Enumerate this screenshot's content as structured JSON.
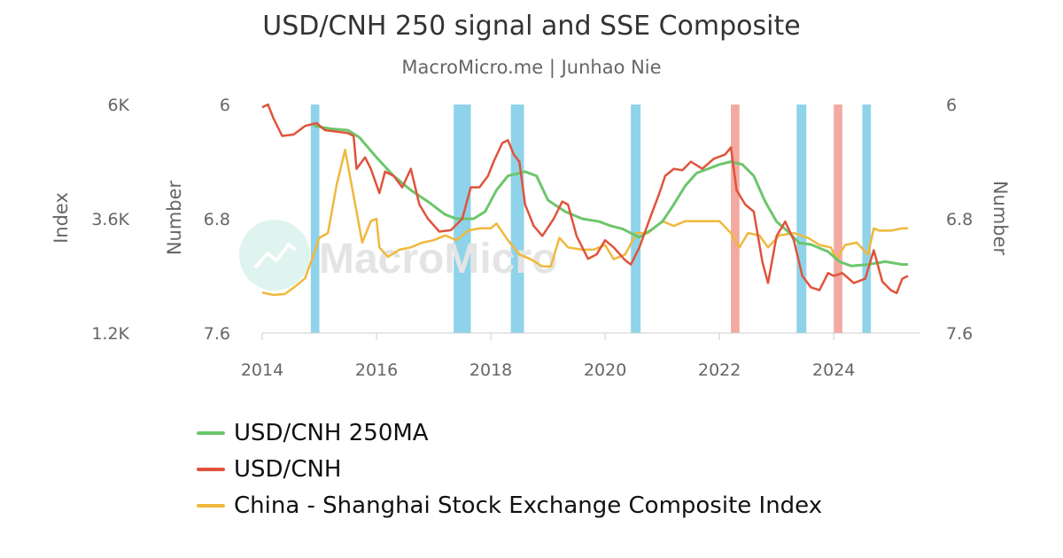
{
  "title": "USD/CNH 250 signal and SSE Composite",
  "subtitle": "MacroMicro.me | Junhao Nie",
  "watermark": "MacroMicro",
  "colors": {
    "ma": "#6cc66c",
    "usdcnh": "#e0533b",
    "sse": "#f0b83c",
    "band_blue": "#8fd3ea",
    "band_red": "#f2aaa0",
    "axis_text": "#666666"
  },
  "chart_data": {
    "type": "line",
    "x_ticks": [
      "2014",
      "2016",
      "2018",
      "2020",
      "2022",
      "2024"
    ],
    "left_axis": {
      "label": "Index",
      "ticks": [
        "6K",
        "3.6K",
        "1.2K"
      ],
      "range": [
        1.2,
        6.0
      ],
      "unit": "K"
    },
    "middle_axis": {
      "label": "Number",
      "ticks": [
        "6",
        "6.8",
        "7.6"
      ],
      "range": [
        6.0,
        7.6
      ],
      "reversed": true
    },
    "right_axis": {
      "label": "Number",
      "ticks": [
        "6",
        "6.8",
        "7.6"
      ],
      "range": [
        6.0,
        7.6
      ],
      "reversed": true
    },
    "bands": [
      {
        "start": 2014.85,
        "end": 2015.0,
        "color": "blue"
      },
      {
        "start": 2017.35,
        "end": 2017.65,
        "color": "blue"
      },
      {
        "start": 2018.35,
        "end": 2018.58,
        "color": "blue"
      },
      {
        "start": 2020.45,
        "end": 2020.62,
        "color": "blue"
      },
      {
        "start": 2022.2,
        "end": 2022.35,
        "color": "red"
      },
      {
        "start": 2023.35,
        "end": 2023.52,
        "color": "blue"
      },
      {
        "start": 2024.0,
        "end": 2024.15,
        "color": "red"
      },
      {
        "start": 2024.5,
        "end": 2024.65,
        "color": "blue"
      }
    ],
    "series": [
      {
        "name": "USD/CNH 250MA",
        "axis": "middle",
        "points": [
          [
            2014.9,
            6.15
          ],
          [
            2015.2,
            6.17
          ],
          [
            2015.5,
            6.18
          ],
          [
            2015.7,
            6.23
          ],
          [
            2016.0,
            6.37
          ],
          [
            2016.3,
            6.5
          ],
          [
            2016.6,
            6.6
          ],
          [
            2016.9,
            6.68
          ],
          [
            2017.2,
            6.77
          ],
          [
            2017.4,
            6.8
          ],
          [
            2017.7,
            6.8
          ],
          [
            2017.9,
            6.75
          ],
          [
            2018.1,
            6.6
          ],
          [
            2018.3,
            6.5
          ],
          [
            2018.6,
            6.47
          ],
          [
            2018.8,
            6.5
          ],
          [
            2019.0,
            6.67
          ],
          [
            2019.3,
            6.75
          ],
          [
            2019.6,
            6.8
          ],
          [
            2019.9,
            6.82
          ],
          [
            2020.1,
            6.85
          ],
          [
            2020.3,
            6.87
          ],
          [
            2020.6,
            6.93
          ],
          [
            2020.8,
            6.88
          ],
          [
            2021.0,
            6.82
          ],
          [
            2021.2,
            6.7
          ],
          [
            2021.4,
            6.57
          ],
          [
            2021.6,
            6.48
          ],
          [
            2021.8,
            6.45
          ],
          [
            2022.0,
            6.42
          ],
          [
            2022.2,
            6.4
          ],
          [
            2022.4,
            6.42
          ],
          [
            2022.6,
            6.5
          ],
          [
            2022.8,
            6.68
          ],
          [
            2023.0,
            6.82
          ],
          [
            2023.2,
            6.89
          ],
          [
            2023.4,
            6.97
          ],
          [
            2023.6,
            6.98
          ],
          [
            2023.9,
            7.03
          ],
          [
            2024.1,
            7.1
          ],
          [
            2024.3,
            7.13
          ],
          [
            2024.6,
            7.12
          ],
          [
            2024.9,
            7.1
          ],
          [
            2025.2,
            7.12
          ],
          [
            2025.3,
            7.12
          ]
        ]
      },
      {
        "name": "USD/CNH",
        "axis": "middle",
        "points": [
          [
            2014.0,
            6.02
          ],
          [
            2014.1,
            6.0
          ],
          [
            2014.2,
            6.1
          ],
          [
            2014.35,
            6.22
          ],
          [
            2014.55,
            6.21
          ],
          [
            2014.75,
            6.15
          ],
          [
            2014.95,
            6.13
          ],
          [
            2015.1,
            6.18
          ],
          [
            2015.3,
            6.19
          ],
          [
            2015.5,
            6.2
          ],
          [
            2015.6,
            6.22
          ],
          [
            2015.65,
            6.45
          ],
          [
            2015.8,
            6.37
          ],
          [
            2015.9,
            6.45
          ],
          [
            2016.05,
            6.62
          ],
          [
            2016.15,
            6.47
          ],
          [
            2016.3,
            6.5
          ],
          [
            2016.45,
            6.58
          ],
          [
            2016.6,
            6.45
          ],
          [
            2016.75,
            6.7
          ],
          [
            2016.9,
            6.8
          ],
          [
            2017.1,
            6.89
          ],
          [
            2017.3,
            6.88
          ],
          [
            2017.5,
            6.8
          ],
          [
            2017.65,
            6.58
          ],
          [
            2017.8,
            6.58
          ],
          [
            2017.95,
            6.5
          ],
          [
            2018.05,
            6.4
          ],
          [
            2018.2,
            6.27
          ],
          [
            2018.3,
            6.25
          ],
          [
            2018.4,
            6.35
          ],
          [
            2018.5,
            6.4
          ],
          [
            2018.6,
            6.7
          ],
          [
            2018.75,
            6.85
          ],
          [
            2018.9,
            6.92
          ],
          [
            2019.1,
            6.8
          ],
          [
            2019.25,
            6.68
          ],
          [
            2019.35,
            6.7
          ],
          [
            2019.5,
            6.92
          ],
          [
            2019.7,
            7.08
          ],
          [
            2019.85,
            7.05
          ],
          [
            2020.0,
            6.95
          ],
          [
            2020.15,
            7.0
          ],
          [
            2020.35,
            7.09
          ],
          [
            2020.45,
            7.12
          ],
          [
            2020.6,
            7.0
          ],
          [
            2020.8,
            6.78
          ],
          [
            2020.95,
            6.62
          ],
          [
            2021.05,
            6.5
          ],
          [
            2021.2,
            6.45
          ],
          [
            2021.35,
            6.46
          ],
          [
            2021.5,
            6.4
          ],
          [
            2021.7,
            6.45
          ],
          [
            2021.9,
            6.38
          ],
          [
            2022.1,
            6.35
          ],
          [
            2022.2,
            6.3
          ],
          [
            2022.3,
            6.6
          ],
          [
            2022.45,
            6.7
          ],
          [
            2022.6,
            6.75
          ],
          [
            2022.75,
            7.1
          ],
          [
            2022.85,
            7.25
          ],
          [
            2023.0,
            6.92
          ],
          [
            2023.15,
            6.82
          ],
          [
            2023.3,
            6.95
          ],
          [
            2023.45,
            7.2
          ],
          [
            2023.6,
            7.28
          ],
          [
            2023.75,
            7.3
          ],
          [
            2023.9,
            7.18
          ],
          [
            2024.0,
            7.2
          ],
          [
            2024.15,
            7.18
          ],
          [
            2024.35,
            7.25
          ],
          [
            2024.55,
            7.22
          ],
          [
            2024.7,
            7.02
          ],
          [
            2024.85,
            7.24
          ],
          [
            2025.0,
            7.3
          ],
          [
            2025.1,
            7.32
          ],
          [
            2025.2,
            7.22
          ],
          [
            2025.3,
            7.2
          ]
        ]
      },
      {
        "name": "China - Shanghai Stock Exchange Composite Index",
        "axis": "left",
        "points": [
          [
            2014.0,
            2.05
          ],
          [
            2014.2,
            2.0
          ],
          [
            2014.4,
            2.02
          ],
          [
            2014.6,
            2.2
          ],
          [
            2014.75,
            2.35
          ],
          [
            2014.9,
            2.85
          ],
          [
            2015.0,
            3.2
          ],
          [
            2015.15,
            3.3
          ],
          [
            2015.3,
            4.3
          ],
          [
            2015.45,
            5.05
          ],
          [
            2015.55,
            4.4
          ],
          [
            2015.65,
            3.75
          ],
          [
            2015.75,
            3.1
          ],
          [
            2015.9,
            3.55
          ],
          [
            2016.0,
            3.6
          ],
          [
            2016.05,
            3.0
          ],
          [
            2016.2,
            2.8
          ],
          [
            2016.4,
            2.95
          ],
          [
            2016.6,
            3.0
          ],
          [
            2016.8,
            3.1
          ],
          [
            2017.0,
            3.15
          ],
          [
            2017.2,
            3.25
          ],
          [
            2017.4,
            3.15
          ],
          [
            2017.6,
            3.35
          ],
          [
            2017.8,
            3.4
          ],
          [
            2018.0,
            3.4
          ],
          [
            2018.1,
            3.5
          ],
          [
            2018.3,
            3.15
          ],
          [
            2018.5,
            2.85
          ],
          [
            2018.7,
            2.75
          ],
          [
            2018.9,
            2.6
          ],
          [
            2019.05,
            2.6
          ],
          [
            2019.2,
            3.2
          ],
          [
            2019.35,
            3.0
          ],
          [
            2019.6,
            2.95
          ],
          [
            2019.8,
            2.95
          ],
          [
            2020.0,
            3.05
          ],
          [
            2020.15,
            2.75
          ],
          [
            2020.35,
            2.85
          ],
          [
            2020.55,
            3.3
          ],
          [
            2020.75,
            3.3
          ],
          [
            2021.0,
            3.55
          ],
          [
            2021.2,
            3.45
          ],
          [
            2021.4,
            3.55
          ],
          [
            2021.7,
            3.55
          ],
          [
            2022.0,
            3.55
          ],
          [
            2022.2,
            3.3
          ],
          [
            2022.35,
            3.0
          ],
          [
            2022.5,
            3.3
          ],
          [
            2022.7,
            3.25
          ],
          [
            2022.85,
            3.0
          ],
          [
            2023.05,
            3.25
          ],
          [
            2023.3,
            3.3
          ],
          [
            2023.55,
            3.2
          ],
          [
            2023.75,
            3.05
          ],
          [
            2023.95,
            3.0
          ],
          [
            2024.05,
            2.75
          ],
          [
            2024.2,
            3.05
          ],
          [
            2024.4,
            3.1
          ],
          [
            2024.6,
            2.85
          ],
          [
            2024.7,
            3.4
          ],
          [
            2024.8,
            3.35
          ],
          [
            2025.0,
            3.35
          ],
          [
            2025.2,
            3.4
          ],
          [
            2025.3,
            3.4
          ]
        ]
      }
    ]
  }
}
